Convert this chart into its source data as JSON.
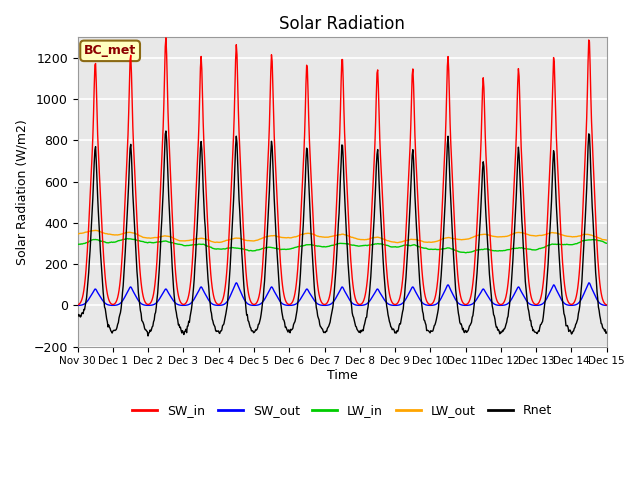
{
  "title": "Solar Radiation",
  "ylabel": "Solar Radiation (W/m2)",
  "xlabel": "Time",
  "ylim": [
    -200,
    1300
  ],
  "yticks": [
    -200,
    0,
    200,
    400,
    600,
    800,
    1000,
    1200
  ],
  "xlim_start": 0,
  "xlim_end": 360,
  "xtick_labels": [
    "Nov 30",
    "Dec 1",
    "Dec 2",
    "Dec 3",
    "Dec 4",
    "Dec 5",
    "Dec 6",
    "Dec 7",
    "Dec 8",
    "Dec 9",
    "Dec 10",
    "Dec 11",
    "Dec 12",
    "Dec 13",
    "Dec 14",
    "Dec 15"
  ],
  "annotation": "BC_met",
  "annotation_color": "#8B0000",
  "annotation_bg": "#FFFFC0",
  "annotation_edge": "#8B6914",
  "series_colors": {
    "SW_in": "#FF0000",
    "SW_out": "#0000FF",
    "LW_in": "#00CC00",
    "LW_out": "#FFA500",
    "Rnet": "#000000"
  },
  "bg_color": "#E8E8E8",
  "grid_color": "#FFFFFF",
  "n_days": 15
}
